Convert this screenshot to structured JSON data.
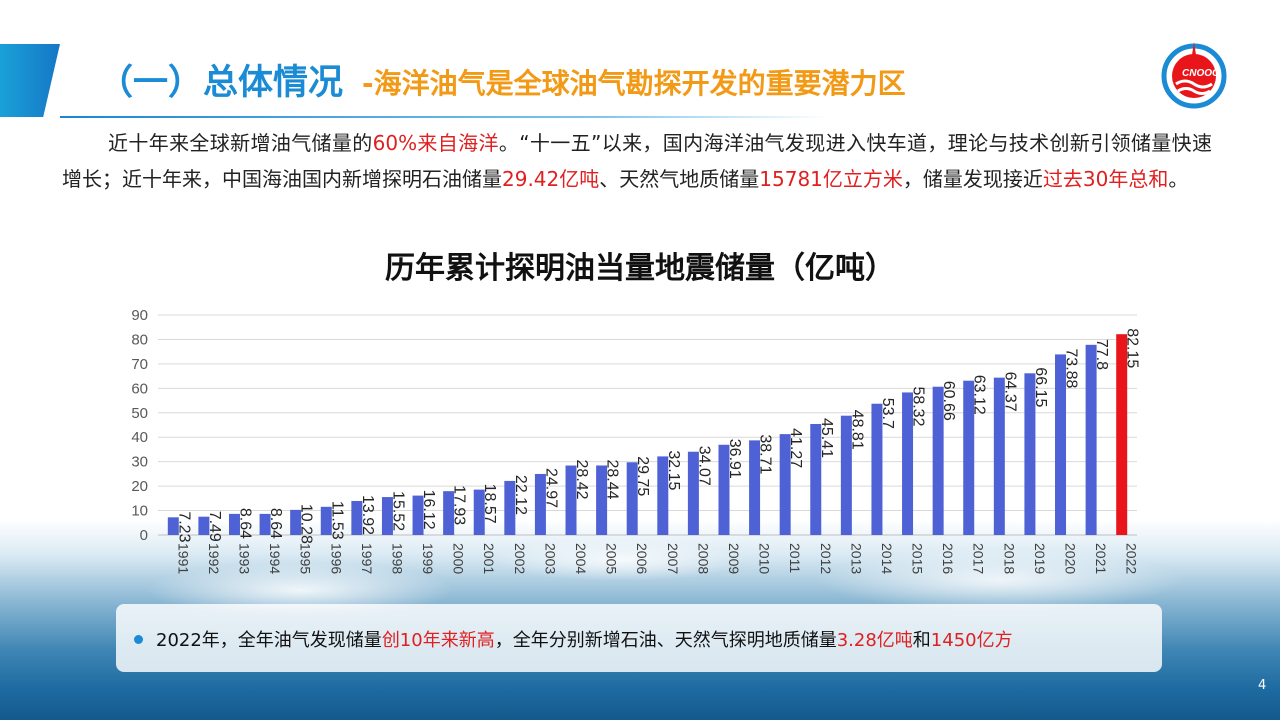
{
  "header": {
    "title_main": "（一）总体情况",
    "title_sub": "-海洋油气是全球油气勘探开发的重要潜力区"
  },
  "logo": {
    "icon": "cnooc-logo",
    "text": "CNOOC"
  },
  "intro": {
    "p1": "近十年来全球新增油气储量的",
    "h1": "60%来自海洋",
    "p2": "。“十一五”以来，国内海洋油气发现进入快车道，理论与技术创新引领储量快速增长；近十年来，中国海油国内新增探明石油储量",
    "h2": "29.42亿吨",
    "p3": "、天然气地质储量",
    "h3": "15781亿立方米",
    "p4": "，储量发现接近",
    "h4": "过去30年总和",
    "p5": "。"
  },
  "chart_data": {
    "type": "bar",
    "title": "历年累计探明油当量地震储量（亿吨）",
    "categories": [
      "1991",
      "1992",
      "1993",
      "1994",
      "1995",
      "1996",
      "1997",
      "1998",
      "1999",
      "2000",
      "2001",
      "2002",
      "2003",
      "2004",
      "2005",
      "2006",
      "2007",
      "2008",
      "2009",
      "2010",
      "2011",
      "2012",
      "2013",
      "2014",
      "2015",
      "2016",
      "2017",
      "2018",
      "2019",
      "2020",
      "2021",
      "2022"
    ],
    "values": [
      7.23,
      7.49,
      8.64,
      8.64,
      10.28,
      11.53,
      13.92,
      15.52,
      16.12,
      17.93,
      18.57,
      22.12,
      24.97,
      28.42,
      28.44,
      29.75,
      32.15,
      34.07,
      36.91,
      38.71,
      41.27,
      45.41,
      48.81,
      53.7,
      58.32,
      60.66,
      63.12,
      64.37,
      66.15,
      73.88,
      77.8,
      82.15
    ],
    "labels": [
      "7.23",
      "7.49",
      "8.64",
      "8.64",
      "10.28",
      "11.53",
      "13.92",
      "15.52",
      "16.12",
      "17.93",
      "18.57",
      "22.12",
      "24.97",
      "28.42",
      "28.44",
      "29.75",
      "32.15",
      "34.07",
      "36.91",
      "38.71",
      "41.27",
      "45.41",
      "48.81",
      "53.7",
      "58.32",
      "60.66",
      "63.12",
      "64.37",
      "66.15",
      "73.88",
      "77.8",
      "82.15"
    ],
    "yticks": [
      "0",
      "10",
      "20",
      "30",
      "40",
      "50",
      "60",
      "70",
      "80",
      "90"
    ],
    "ylim": [
      0,
      90
    ],
    "grid": true,
    "bar_color": "#4e62d6",
    "highlight_color": "#e8161b",
    "highlight_index": 31
  },
  "note": {
    "t1": "2022年，全年油气发现储量",
    "h1": "创10年来新高",
    "t2": "，全年分别新增石油、天然气探明地质储量",
    "h2": "3.28亿吨",
    "t3": "和",
    "h3": "1450亿方"
  },
  "page_number": "4"
}
